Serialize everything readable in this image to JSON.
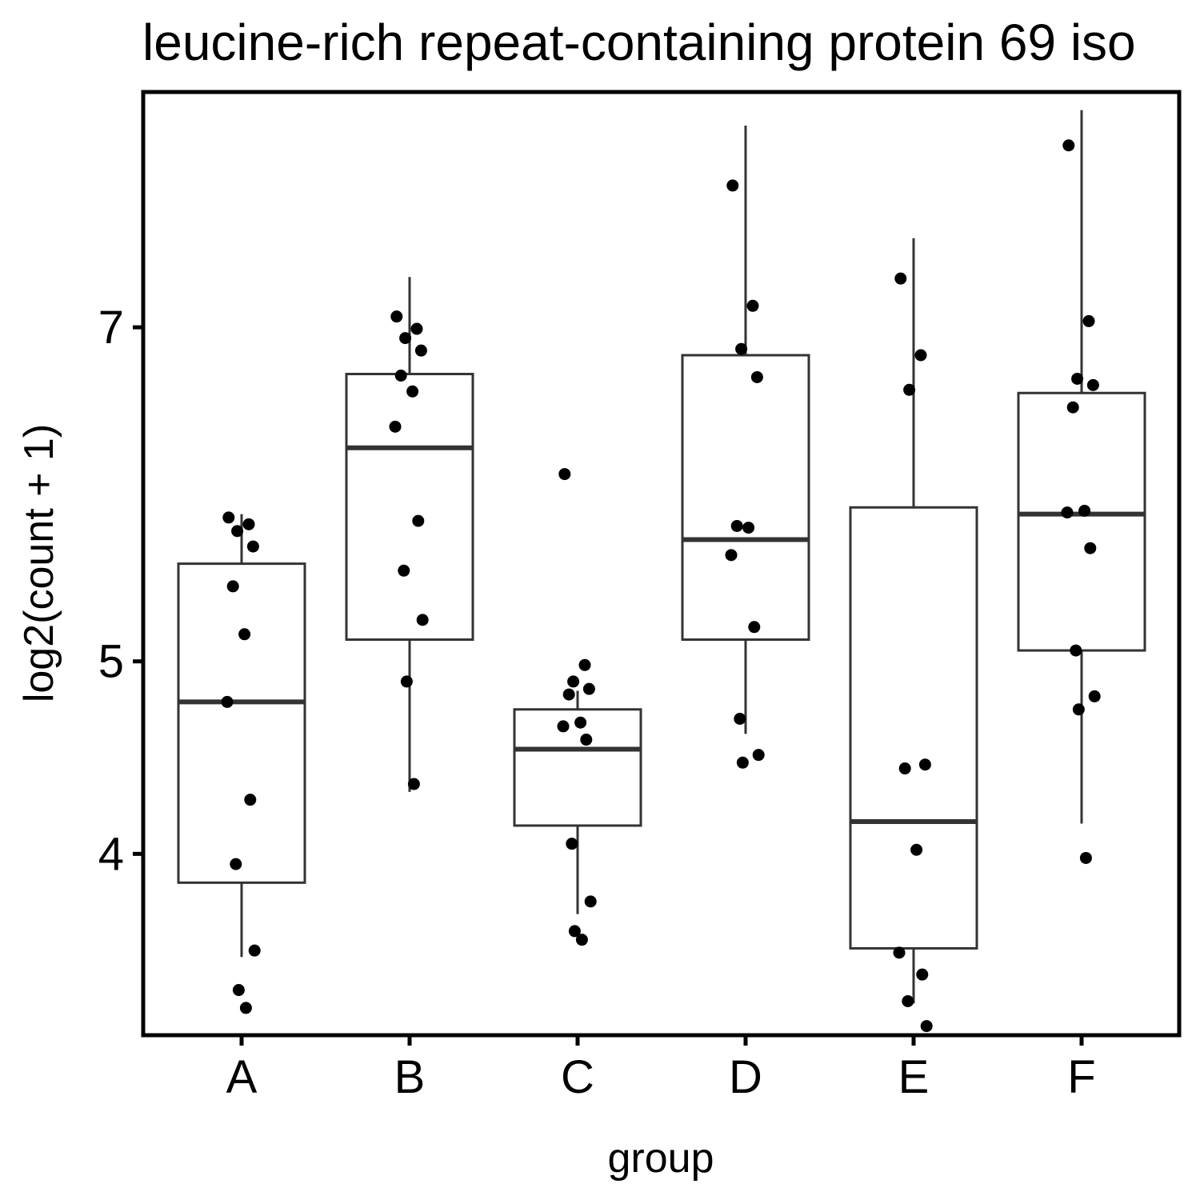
{
  "chart_data": {
    "type": "boxplot",
    "title": "leucine-rich repeat-containing protein 69 iso",
    "xlabel": "group",
    "ylabel": "log2(count + 1)",
    "categories": [
      "A",
      "B",
      "C",
      "D",
      "E",
      "F"
    ],
    "y_ticks": [
      4,
      5,
      7
    ],
    "ylim": [
      3.16,
      8.61
    ],
    "grid": false,
    "legend": "none",
    "boxes": [
      {
        "group": "A",
        "whisker_low": 3.51,
        "q1": 3.86,
        "median": 4.78,
        "q3": 5.55,
        "whisker_high": 5.84
      },
      {
        "group": "B",
        "whisker_low": 4.31,
        "q1": 5.12,
        "median": 6.24,
        "q3": 6.7,
        "whisker_high": 7.33
      },
      {
        "group": "C",
        "whisker_low": 3.71,
        "q1": 4.14,
        "median": 4.53,
        "q3": 4.74,
        "whisker_high": 4.84
      },
      {
        "group": "D",
        "whisker_low": 4.61,
        "q1": 5.12,
        "median": 5.69,
        "q3": 6.82,
        "whisker_high": 8.37
      },
      {
        "group": "E",
        "whisker_low": 3.3,
        "q1": 3.55,
        "median": 4.16,
        "q3": 5.88,
        "whisker_high": 7.59
      },
      {
        "group": "F",
        "whisker_low": 4.15,
        "q1": 5.06,
        "median": 5.84,
        "q3": 6.58,
        "whisker_high": 8.48
      }
    ],
    "points": [
      {
        "group": "A",
        "y": [
          5.82,
          5.78,
          5.74,
          5.65,
          5.42,
          5.15,
          4.78,
          4.27,
          3.95,
          3.54,
          3.36,
          3.28
        ]
      },
      {
        "group": "B",
        "y": [
          7.07,
          6.99,
          6.93,
          6.85,
          6.69,
          6.59,
          6.37,
          5.8,
          5.51,
          5.23,
          4.89,
          4.35
        ]
      },
      {
        "group": "C",
        "y": [
          6.08,
          4.98,
          4.89,
          4.85,
          4.82,
          4.67,
          4.65,
          4.58,
          4.05,
          3.77,
          3.63,
          3.59
        ]
      },
      {
        "group": "D",
        "y": [
          7.95,
          7.14,
          6.86,
          6.68,
          5.77,
          5.76,
          5.6,
          5.19,
          4.69,
          4.5,
          4.46
        ]
      },
      {
        "group": "E",
        "y": [
          7.32,
          6.82,
          6.6,
          4.45,
          4.43,
          4.02,
          3.53,
          3.43,
          3.31,
          3.2
        ]
      },
      {
        "group": "F",
        "y": [
          8.23,
          7.04,
          6.67,
          6.63,
          6.49,
          5.86,
          5.85,
          5.64,
          5.06,
          4.81,
          4.74,
          3.98
        ]
      }
    ]
  }
}
